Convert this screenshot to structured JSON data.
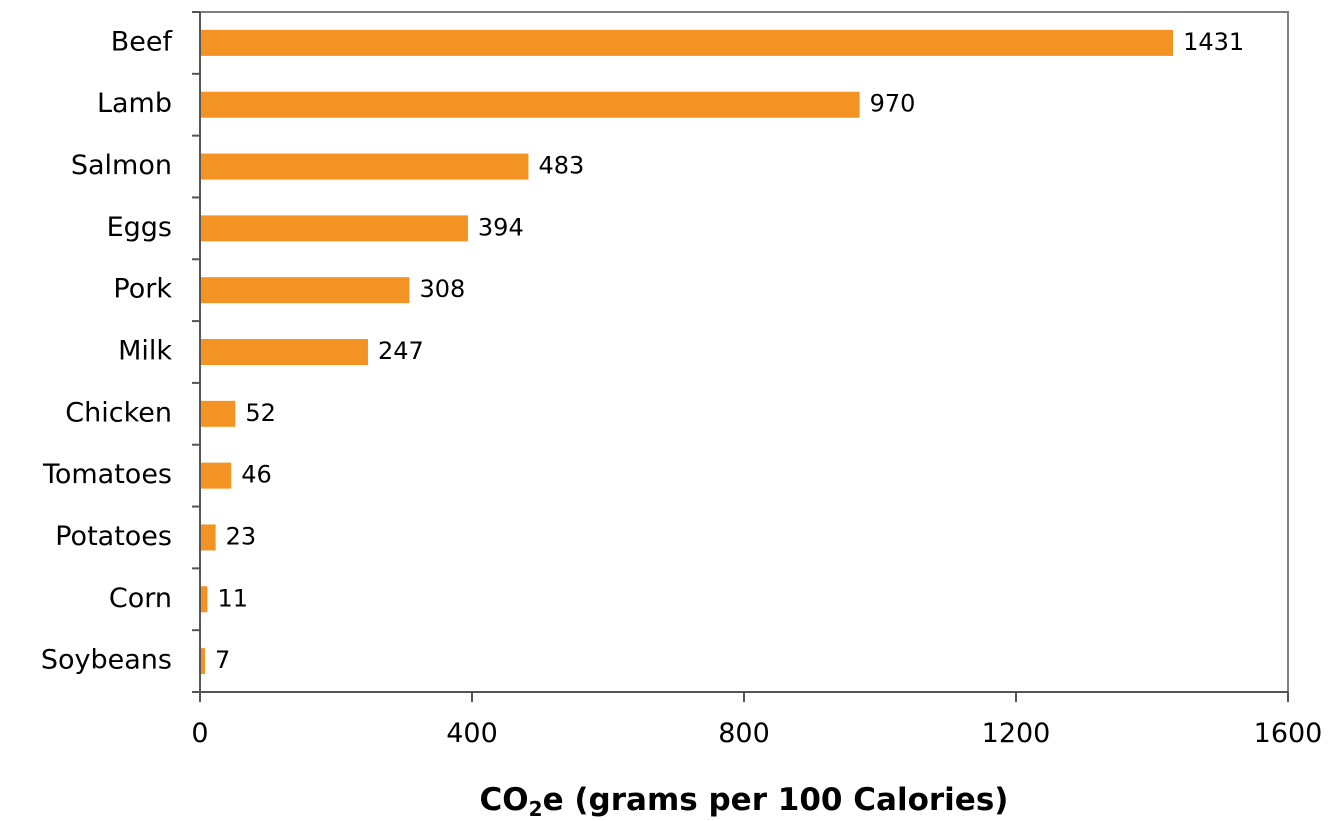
{
  "chart_data": {
    "type": "bar",
    "orientation": "horizontal",
    "categories": [
      "Beef",
      "Lamb",
      "Salmon",
      "Eggs",
      "Pork",
      "Milk",
      "Chicken",
      "Tomatoes",
      "Potatoes",
      "Corn",
      "Soybeans"
    ],
    "values": [
      1431,
      970,
      483,
      394,
      308,
      247,
      52,
      46,
      23,
      11,
      7
    ],
    "value_labels": [
      "1431",
      "970",
      "483",
      "394",
      "308",
      "247",
      "52",
      "46",
      "23",
      "11",
      "7"
    ],
    "title": "",
    "xlabel": {
      "prefix": "CO",
      "subscript": "2",
      "suffix": "e (grams per 100 Calories)"
    },
    "ylabel": "",
    "xlim": [
      0,
      1600
    ],
    "xticks": [
      0,
      400,
      800,
      1200,
      1600
    ],
    "xtick_labels": [
      "0",
      "400",
      "800",
      "1200",
      "1600"
    ],
    "grid": false,
    "legend": "none",
    "colors": {
      "bar": "#F39323",
      "frame": "#808080",
      "text": "#000000"
    }
  }
}
